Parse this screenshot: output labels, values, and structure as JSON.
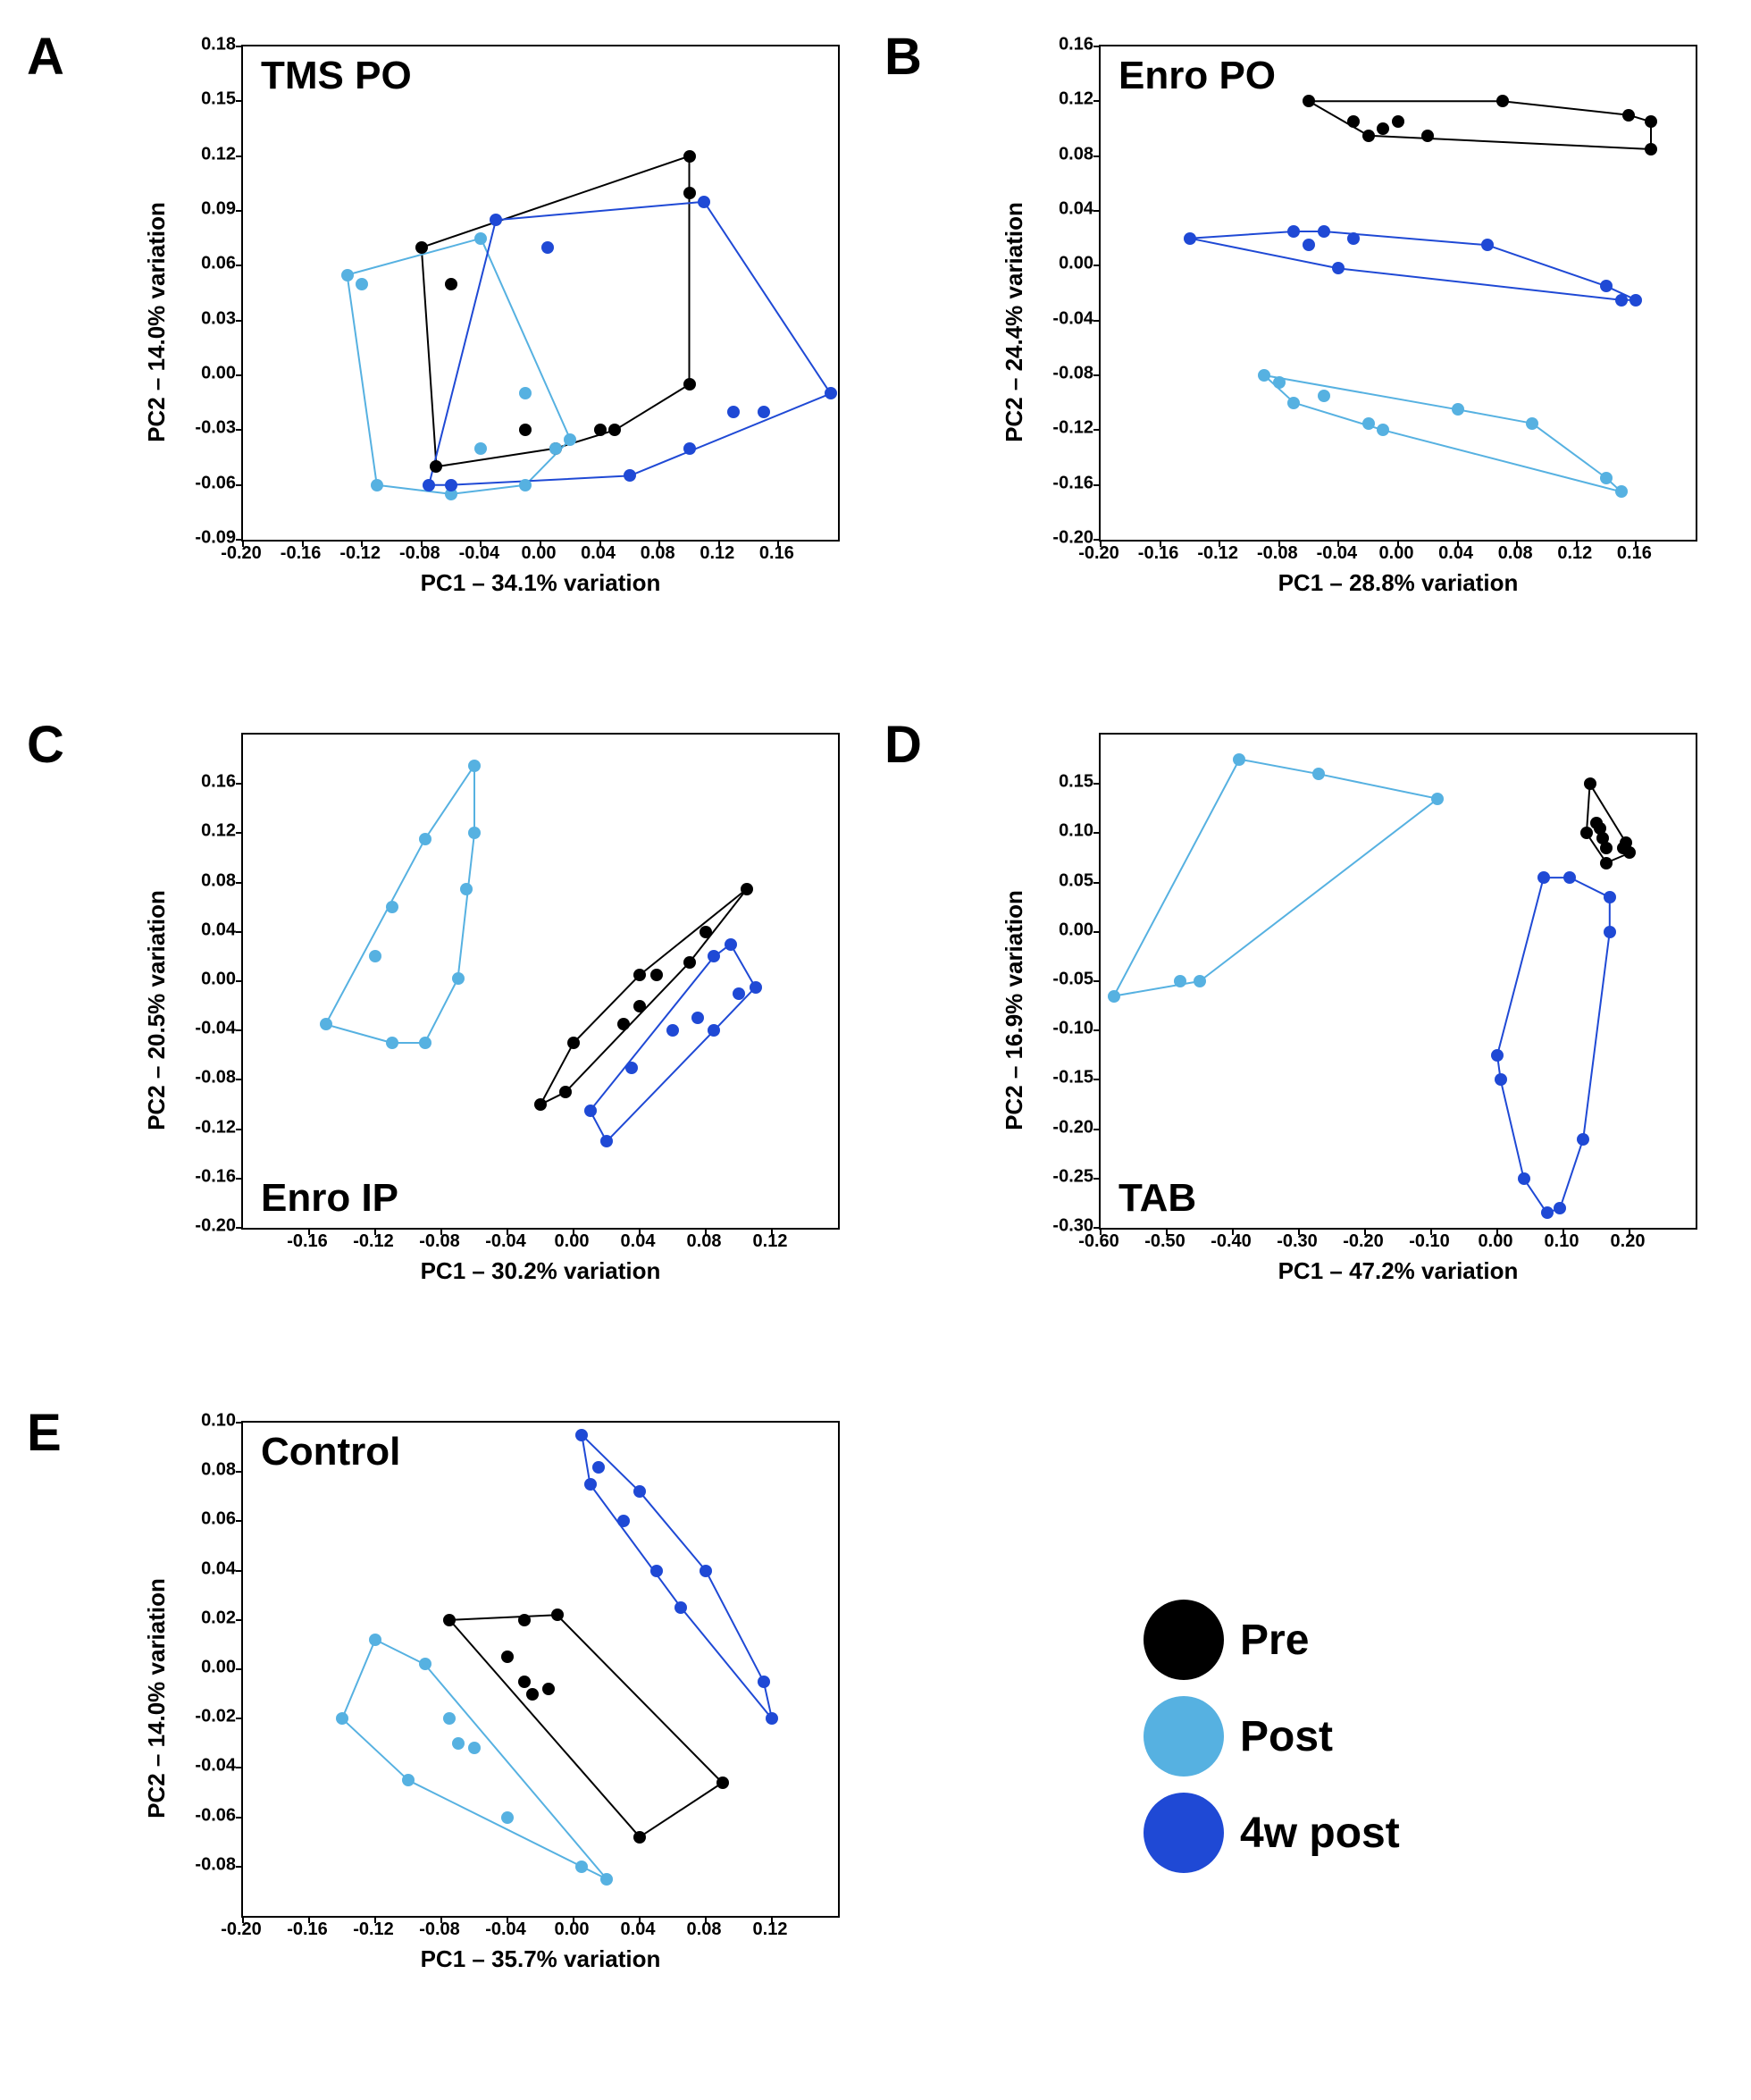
{
  "colors": {
    "pre": "#000000",
    "post": "#56b1e1",
    "w4post": "#1f49d5",
    "axis": "#000000",
    "bg": "#ffffff"
  },
  "marker_radius": 7,
  "line_width": 2,
  "font": {
    "tick_size": 20,
    "axis_title_size": 26,
    "panel_title_size": 44,
    "panel_letter_size": 58,
    "legend_label_size": 48
  },
  "legend": {
    "items": [
      {
        "key": "pre",
        "label": "Pre"
      },
      {
        "key": "post",
        "label": "Post"
      },
      {
        "key": "w4post",
        "label": "4w post"
      }
    ]
  },
  "panels": [
    {
      "id": "A",
      "title": "TMS PO",
      "title_pos": "top-left",
      "xlabel": "PC1 – 34.1% variation",
      "ylabel": "PC2 – 14.0% variation",
      "xlim": [
        -0.2,
        0.2
      ],
      "ylim": [
        -0.09,
        0.18
      ],
      "xticks": [
        -0.2,
        -0.16,
        -0.12,
        -0.08,
        -0.04,
        0.0,
        0.04,
        0.08,
        0.12,
        0.16
      ],
      "yticks": [
        -0.09,
        -0.06,
        -0.03,
        0.0,
        0.03,
        0.06,
        0.09,
        0.12,
        0.15,
        0.18
      ],
      "series": {
        "pre": [
          [
            -0.08,
            0.07
          ],
          [
            -0.06,
            0.05
          ],
          [
            0.1,
            0.12
          ],
          [
            0.1,
            0.1
          ],
          [
            0.1,
            -0.005
          ],
          [
            -0.07,
            -0.05
          ],
          [
            -0.01,
            -0.03
          ],
          [
            0.01,
            -0.04
          ],
          [
            0.04,
            -0.03
          ],
          [
            0.05,
            -0.03
          ]
        ],
        "post": [
          [
            -0.13,
            0.055
          ],
          [
            -0.12,
            0.05
          ],
          [
            -0.04,
            0.075
          ],
          [
            -0.11,
            -0.06
          ],
          [
            -0.06,
            -0.065
          ],
          [
            -0.04,
            -0.04
          ],
          [
            -0.01,
            -0.06
          ],
          [
            0.01,
            -0.04
          ],
          [
            0.02,
            -0.035
          ],
          [
            -0.01,
            -0.01
          ]
        ],
        "w4post": [
          [
            -0.03,
            0.085
          ],
          [
            0.005,
            0.07
          ],
          [
            0.11,
            0.095
          ],
          [
            0.195,
            -0.01
          ],
          [
            0.15,
            -0.02
          ],
          [
            0.13,
            -0.02
          ],
          [
            0.1,
            -0.04
          ],
          [
            0.06,
            -0.055
          ],
          [
            -0.06,
            -0.06
          ],
          [
            -0.075,
            -0.06
          ]
        ]
      }
    },
    {
      "id": "B",
      "title": "Enro PO",
      "title_pos": "top-left",
      "xlabel": "PC1 – 28.8% variation",
      "ylabel": "PC2 – 24.4% variation",
      "xlim": [
        -0.2,
        0.2
      ],
      "ylim": [
        -0.2,
        0.16
      ],
      "xticks": [
        -0.2,
        -0.16,
        -0.12,
        -0.08,
        -0.04,
        0.0,
        0.04,
        0.08,
        0.12,
        0.16
      ],
      "yticks": [
        -0.2,
        -0.16,
        -0.12,
        -0.08,
        -0.04,
        0.0,
        0.04,
        0.08,
        0.12,
        0.16
      ],
      "series": {
        "pre": [
          [
            -0.06,
            0.12
          ],
          [
            -0.03,
            0.105
          ],
          [
            -0.02,
            0.095
          ],
          [
            -0.01,
            0.1
          ],
          [
            0.0,
            0.105
          ],
          [
            0.02,
            0.095
          ],
          [
            0.07,
            0.12
          ],
          [
            0.155,
            0.11
          ],
          [
            0.17,
            0.105
          ],
          [
            0.17,
            0.085
          ]
        ],
        "post": [
          [
            -0.09,
            -0.08
          ],
          [
            -0.08,
            -0.085
          ],
          [
            -0.07,
            -0.1
          ],
          [
            -0.05,
            -0.095
          ],
          [
            -0.02,
            -0.115
          ],
          [
            -0.01,
            -0.12
          ],
          [
            0.04,
            -0.105
          ],
          [
            0.09,
            -0.115
          ],
          [
            0.14,
            -0.155
          ],
          [
            0.15,
            -0.165
          ]
        ],
        "w4post": [
          [
            -0.14,
            0.02
          ],
          [
            -0.07,
            0.025
          ],
          [
            -0.06,
            0.015
          ],
          [
            -0.05,
            0.025
          ],
          [
            -0.04,
            -0.002
          ],
          [
            -0.03,
            0.02
          ],
          [
            0.06,
            0.015
          ],
          [
            0.14,
            -0.015
          ],
          [
            0.15,
            -0.025
          ],
          [
            0.16,
            -0.025
          ]
        ]
      }
    },
    {
      "id": "C",
      "title": "Enro IP",
      "title_pos": "bottom-left",
      "xlabel": "PC1 – 30.2% variation",
      "ylabel": "PC2 – 20.5% variation",
      "xlim": [
        -0.2,
        0.16
      ],
      "ylim": [
        -0.2,
        0.2
      ],
      "xticks": [
        -0.16,
        -0.12,
        -0.08,
        -0.04,
        0.0,
        0.04,
        0.08,
        0.12
      ],
      "yticks": [
        -0.2,
        -0.16,
        -0.12,
        -0.08,
        -0.04,
        0.0,
        0.04,
        0.08,
        0.12,
        0.16
      ],
      "series": {
        "pre": [
          [
            -0.02,
            -0.1
          ],
          [
            -0.005,
            -0.09
          ],
          [
            0.0,
            -0.05
          ],
          [
            0.03,
            -0.035
          ],
          [
            0.04,
            -0.02
          ],
          [
            0.05,
            0.005
          ],
          [
            0.07,
            0.015
          ],
          [
            0.08,
            0.04
          ],
          [
            0.105,
            0.075
          ],
          [
            0.04,
            0.005
          ]
        ],
        "post": [
          [
            -0.06,
            0.175
          ],
          [
            -0.06,
            0.12
          ],
          [
            -0.09,
            0.115
          ],
          [
            -0.065,
            0.075
          ],
          [
            -0.11,
            0.06
          ],
          [
            -0.07,
            0.002
          ],
          [
            -0.12,
            0.02
          ],
          [
            -0.15,
            -0.035
          ],
          [
            -0.11,
            -0.05
          ],
          [
            -0.09,
            -0.05
          ]
        ],
        "w4post": [
          [
            0.02,
            -0.13
          ],
          [
            0.01,
            -0.105
          ],
          [
            0.035,
            -0.07
          ],
          [
            0.06,
            -0.04
          ],
          [
            0.075,
            -0.03
          ],
          [
            0.085,
            -0.04
          ],
          [
            0.1,
            -0.01
          ],
          [
            0.11,
            -0.005
          ],
          [
            0.085,
            0.02
          ],
          [
            0.095,
            0.03
          ]
        ]
      }
    },
    {
      "id": "D",
      "title": "TAB",
      "title_pos": "bottom-left",
      "xlabel": "PC1 – 47.2% variation",
      "ylabel": "PC2 – 16.9% variation",
      "xlim": [
        -0.6,
        0.3
      ],
      "ylim": [
        -0.3,
        0.2
      ],
      "xticks": [
        -0.6,
        -0.5,
        -0.4,
        -0.3,
        -0.2,
        -0.1,
        0.0,
        0.1,
        0.2
      ],
      "yticks": [
        -0.3,
        -0.25,
        -0.2,
        -0.15,
        -0.1,
        -0.05,
        0.0,
        0.05,
        0.1,
        0.15
      ],
      "series": {
        "pre": [
          [
            0.14,
            0.15
          ],
          [
            0.135,
            0.1
          ],
          [
            0.15,
            0.11
          ],
          [
            0.155,
            0.105
          ],
          [
            0.165,
            0.07
          ],
          [
            0.195,
            0.09
          ],
          [
            0.19,
            0.085
          ],
          [
            0.2,
            0.08
          ],
          [
            0.165,
            0.085
          ],
          [
            0.16,
            0.095
          ]
        ],
        "post": [
          [
            -0.58,
            -0.065
          ],
          [
            -0.48,
            -0.05
          ],
          [
            -0.45,
            -0.05
          ],
          [
            -0.39,
            0.175
          ],
          [
            -0.27,
            0.16
          ],
          [
            -0.09,
            0.135
          ]
        ],
        "w4post": [
          [
            0.0,
            -0.125
          ],
          [
            0.005,
            -0.15
          ],
          [
            0.04,
            -0.25
          ],
          [
            0.075,
            -0.285
          ],
          [
            0.095,
            -0.28
          ],
          [
            0.13,
            -0.21
          ],
          [
            0.17,
            0.0
          ],
          [
            0.17,
            0.035
          ],
          [
            0.11,
            0.055
          ],
          [
            0.07,
            0.055
          ]
        ]
      }
    },
    {
      "id": "E",
      "title": "Control",
      "title_pos": "top-left",
      "xlabel": "PC1 – 35.7% variation",
      "ylabel": "PC2 – 14.0% variation",
      "xlim": [
        -0.2,
        0.16
      ],
      "ylim": [
        -0.1,
        0.1
      ],
      "xticks": [
        -0.2,
        -0.16,
        -0.12,
        -0.08,
        -0.04,
        0.0,
        0.04,
        0.08,
        0.12
      ],
      "yticks": [
        -0.08,
        -0.06,
        -0.04,
        -0.02,
        0.0,
        0.02,
        0.04,
        0.06,
        0.08,
        0.1
      ],
      "series": {
        "pre": [
          [
            -0.075,
            0.02
          ],
          [
            -0.03,
            0.02
          ],
          [
            -0.01,
            0.022
          ],
          [
            -0.04,
            0.005
          ],
          [
            -0.03,
            -0.005
          ],
          [
            -0.025,
            -0.01
          ],
          [
            -0.015,
            -0.008
          ],
          [
            0.04,
            -0.068
          ],
          [
            0.09,
            -0.046
          ]
        ],
        "post": [
          [
            -0.14,
            -0.02
          ],
          [
            -0.12,
            0.012
          ],
          [
            -0.09,
            0.002
          ],
          [
            -0.1,
            -0.045
          ],
          [
            -0.075,
            -0.02
          ],
          [
            -0.07,
            -0.03
          ],
          [
            -0.06,
            -0.032
          ],
          [
            -0.04,
            -0.06
          ],
          [
            0.005,
            -0.08
          ],
          [
            0.02,
            -0.085
          ]
        ],
        "w4post": [
          [
            0.005,
            0.095
          ],
          [
            0.01,
            0.075
          ],
          [
            0.015,
            0.082
          ],
          [
            0.03,
            0.06
          ],
          [
            0.04,
            0.072
          ],
          [
            0.05,
            0.04
          ],
          [
            0.065,
            0.025
          ],
          [
            0.08,
            0.04
          ],
          [
            0.115,
            -0.005
          ],
          [
            0.12,
            -0.02
          ]
        ]
      }
    }
  ]
}
